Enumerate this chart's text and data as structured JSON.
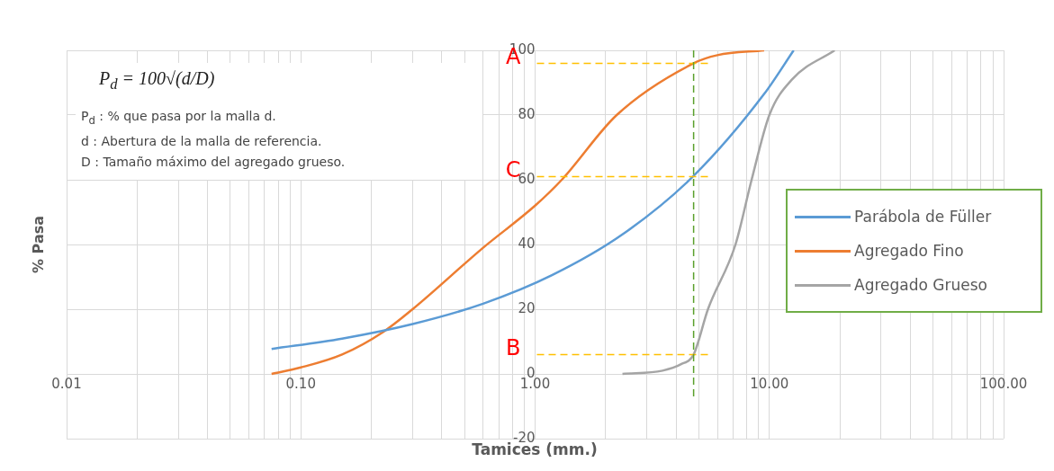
{
  "chart_data": {
    "type": "line",
    "xlabel": "Tamices (mm.)",
    "ylabel": "% Pasa",
    "log": "x",
    "xlim": [
      0.01,
      100
    ],
    "ylim": [
      -20,
      100
    ],
    "xticks": [
      {
        "value": 0.01,
        "label": "0.01"
      },
      {
        "value": 0.02,
        "label": null
      },
      {
        "value": 0.03,
        "label": null
      },
      {
        "value": 0.04,
        "label": null
      },
      {
        "value": 0.05,
        "label": null
      },
      {
        "value": 0.06,
        "label": null
      },
      {
        "value": 0.07,
        "label": null
      },
      {
        "value": 0.08,
        "label": null
      },
      {
        "value": 0.09,
        "label": null
      },
      {
        "value": 0.1,
        "label": "0.10"
      },
      {
        "value": 0.2,
        "label": null
      },
      {
        "value": 0.3,
        "label": null
      },
      {
        "value": 0.4,
        "label": null
      },
      {
        "value": 0.5,
        "label": null
      },
      {
        "value": 0.6,
        "label": null
      },
      {
        "value": 0.7,
        "label": null
      },
      {
        "value": 0.8,
        "label": null
      },
      {
        "value": 0.9,
        "label": null
      },
      {
        "value": 1,
        "label": "1.00"
      },
      {
        "value": 2,
        "label": null
      },
      {
        "value": 3,
        "label": null
      },
      {
        "value": 4,
        "label": null
      },
      {
        "value": 5,
        "label": null
      },
      {
        "value": 6,
        "label": null
      },
      {
        "value": 7,
        "label": null
      },
      {
        "value": 8,
        "label": null
      },
      {
        "value": 9,
        "label": null
      },
      {
        "value": 10,
        "label": "10.00"
      },
      {
        "value": 20,
        "label": null
      },
      {
        "value": 30,
        "label": null
      },
      {
        "value": 40,
        "label": null
      },
      {
        "value": 50,
        "label": null
      },
      {
        "value": 60,
        "label": null
      },
      {
        "value": 70,
        "label": null
      },
      {
        "value": 80,
        "label": null
      },
      {
        "value": 90,
        "label": null
      },
      {
        "value": 100,
        "label": "100.00"
      }
    ],
    "yticks": [
      -20,
      0,
      20,
      40,
      60,
      80,
      100
    ],
    "grid": true,
    "legend": "right",
    "marker": "none",
    "line_style": "solid",
    "series": [
      {
        "name": "Parábola de Füller",
        "color": "#5b9bd5",
        "x": [
          0.075,
          0.15,
          0.3,
          0.6,
          1.18,
          2.36,
          4.75,
          9.5,
          12.7
        ],
        "values": [
          7.7,
          10.9,
          15.4,
          21.7,
          30.5,
          43.1,
          61.2,
          86.5,
          100
        ]
      },
      {
        "name": "Agregado Fino",
        "color": "#ed7d31",
        "x": [
          0.075,
          0.1,
          0.15,
          0.225,
          0.3,
          0.6,
          1,
          1.3,
          2.23,
          4.75,
          6,
          9.5
        ],
        "values": [
          0,
          2,
          6,
          13,
          20,
          39,
          52,
          60,
          80,
          96,
          98.5,
          100
        ]
      },
      {
        "name": "Agregado Grueso",
        "color": "#a5a5a5",
        "x": [
          2.36,
          3.5,
          4.2,
          4.75,
          5.47,
          7.17,
          8.4,
          10,
          12.5,
          19
        ],
        "values": [
          0,
          1,
          3,
          6,
          20,
          40,
          60,
          80,
          91,
          100
        ]
      }
    ],
    "ref_lines": [
      {
        "axis": "y",
        "value": 96,
        "label": "A",
        "color": "#ffc000",
        "line_style": "dashed"
      },
      {
        "axis": "y",
        "value": 61,
        "label": "C",
        "color": "#ffc000",
        "line_style": "dashed"
      },
      {
        "axis": "y",
        "value": 6,
        "label": "B",
        "color": "#ffc000",
        "line_style": "dashed"
      },
      {
        "axis": "x",
        "value": 4.75,
        "color": "#5aa02c",
        "line_style": "dashed"
      }
    ],
    "annotations": [
      "P$_{d}$ = 100√(d/D)",
      "P$_{d}$ : % que pasa por la malla d.",
      "d : Abertura de la malla de referencia.",
      "D : Tamaño máximo del agregado grueso."
    ]
  }
}
